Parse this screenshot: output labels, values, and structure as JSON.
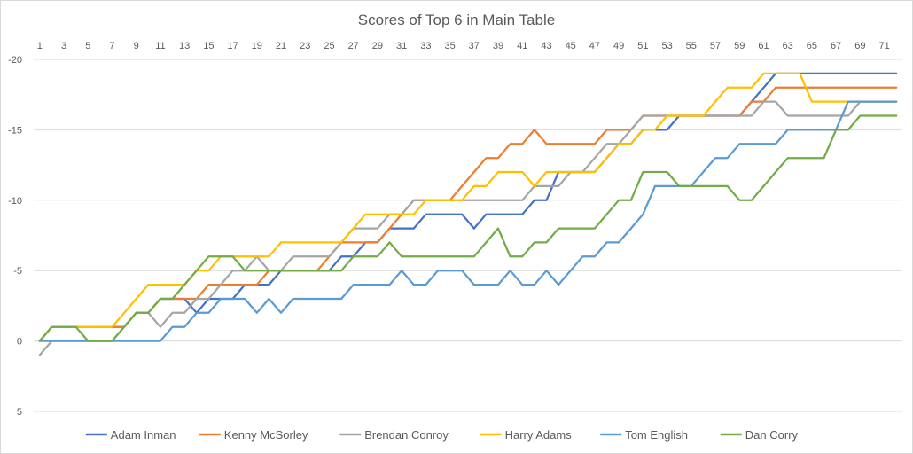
{
  "chart_data": {
    "type": "line",
    "title": "Scores of Top 6 in Main Table",
    "xlabel": "",
    "ylabel": "",
    "y_axis_reversed": true,
    "ylim": [
      5,
      -20
    ],
    "y_ticks": [
      5,
      0,
      -5,
      -10,
      -15,
      -20
    ],
    "y_tick_labels": [
      "5",
      "0",
      "-5",
      "-10",
      "-15",
      "-20"
    ],
    "x_tick_labels": [
      "1",
      "3",
      "5",
      "7",
      "9",
      "11",
      "13",
      "15",
      "17",
      "19",
      "21",
      "23",
      "25",
      "27",
      "29",
      "31",
      "33",
      "35",
      "37",
      "39",
      "41",
      "43",
      "45",
      "47",
      "49",
      "51",
      "53",
      "55",
      "57",
      "59",
      "61",
      "63",
      "65",
      "67",
      "69",
      "71"
    ],
    "x": [
      1,
      2,
      3,
      4,
      5,
      6,
      7,
      8,
      9,
      10,
      11,
      12,
      13,
      14,
      15,
      16,
      17,
      18,
      19,
      20,
      21,
      22,
      23,
      24,
      25,
      26,
      27,
      28,
      29,
      30,
      31,
      32,
      33,
      34,
      35,
      36,
      37,
      38,
      39,
      40,
      41,
      42,
      43,
      44,
      45,
      46,
      47,
      48,
      49,
      50,
      51,
      52,
      53,
      54,
      55,
      56,
      57,
      58,
      59,
      60,
      61,
      62,
      63,
      64,
      65,
      66,
      67,
      68,
      69,
      70,
      71,
      72
    ],
    "grid": "horizontal",
    "legend_position": "bottom",
    "series": [
      {
        "name": "Adam Inman",
        "color": "#4472C4",
        "values": [
          0,
          -1,
          -1,
          -1,
          -1,
          -1,
          -1,
          -1,
          -2,
          -2,
          -3,
          -3,
          -3,
          -2,
          -3,
          -3,
          -3,
          -4,
          -4,
          -4,
          -5,
          -5,
          -5,
          -5,
          -5,
          -6,
          -6,
          -7,
          -7,
          -8,
          -8,
          -8,
          -9,
          -9,
          -9,
          -9,
          -8,
          -9,
          -9,
          -9,
          -9,
          -10,
          -10,
          -12,
          -12,
          -12,
          -12,
          -13,
          -14,
          -14,
          -15,
          -15,
          -15,
          -16,
          -16,
          -16,
          -16,
          -16,
          -16,
          -17,
          -18,
          -19,
          -19,
          -19,
          -19,
          -19,
          -19,
          -19,
          -19,
          -19,
          -19,
          -19
        ]
      },
      {
        "name": "Kenny McSorley",
        "color": "#ED7D31",
        "values": [
          0,
          -1,
          -1,
          -1,
          -1,
          -1,
          -1,
          -1,
          -2,
          -2,
          -3,
          -3,
          -3,
          -3,
          -4,
          -4,
          -4,
          -4,
          -4,
          -5,
          -5,
          -5,
          -5,
          -5,
          -6,
          -7,
          -7,
          -7,
          -7,
          -8,
          -9,
          -10,
          -10,
          -10,
          -10,
          -11,
          -12,
          -13,
          -13,
          -14,
          -14,
          -15,
          -14,
          -14,
          -14,
          -14,
          -14,
          -15,
          -15,
          -15,
          -16,
          -16,
          -16,
          -16,
          -16,
          -16,
          -16,
          -16,
          -16,
          -17,
          -17,
          -18,
          -18,
          -18,
          -18,
          -18,
          -18,
          -18,
          -18,
          -18,
          -18,
          -18
        ]
      },
      {
        "name": "Brendan Conroy",
        "color": "#A5A5A5",
        "values": [
          1,
          0,
          0,
          0,
          0,
          0,
          0,
          -1,
          -2,
          -2,
          -1,
          -2,
          -2,
          -3,
          -3,
          -4,
          -5,
          -5,
          -6,
          -5,
          -5,
          -6,
          -6,
          -6,
          -6,
          -7,
          -8,
          -8,
          -8,
          -9,
          -9,
          -10,
          -10,
          -10,
          -10,
          -10,
          -10,
          -10,
          -10,
          -10,
          -10,
          -11,
          -11,
          -11,
          -12,
          -12,
          -13,
          -14,
          -14,
          -15,
          -16,
          -16,
          -16,
          -16,
          -16,
          -16,
          -16,
          -16,
          -16,
          -16,
          -17,
          -17,
          -16,
          -16,
          -16,
          -16,
          -16,
          -16,
          -17,
          -17,
          -17,
          -17
        ]
      },
      {
        "name": "Harry Adams",
        "color": "#FFC000",
        "values": [
          0,
          -1,
          -1,
          -1,
          -1,
          -1,
          -1,
          -2,
          -3,
          -4,
          -4,
          -4,
          -4,
          -5,
          -5,
          -6,
          -6,
          -6,
          -6,
          -6,
          -7,
          -7,
          -7,
          -7,
          -7,
          -7,
          -8,
          -9,
          -9,
          -9,
          -9,
          -9,
          -10,
          -10,
          -10,
          -10,
          -11,
          -11,
          -12,
          -12,
          -12,
          -11,
          -12,
          -12,
          -12,
          -12,
          -12,
          -13,
          -14,
          -14,
          -15,
          -15,
          -16,
          -16,
          -16,
          -16,
          -17,
          -18,
          -18,
          -18,
          -19,
          -19,
          -19,
          -19,
          -17,
          -17,
          -17,
          -17,
          -17,
          -17,
          -17,
          -17
        ]
      },
      {
        "name": "Tom English",
        "color": "#5B9BD5",
        "values": [
          0,
          0,
          0,
          0,
          0,
          0,
          0,
          0,
          0,
          0,
          0,
          -1,
          -1,
          -2,
          -2,
          -3,
          -3,
          -3,
          -2,
          -3,
          -2,
          -3,
          -3,
          -3,
          -3,
          -3,
          -4,
          -4,
          -4,
          -4,
          -5,
          -4,
          -4,
          -5,
          -5,
          -5,
          -4,
          -4,
          -4,
          -5,
          -4,
          -4,
          -5,
          -4,
          -5,
          -6,
          -6,
          -7,
          -7,
          -8,
          -9,
          -11,
          -11,
          -11,
          -11,
          -12,
          -13,
          -13,
          -14,
          -14,
          -14,
          -14,
          -15,
          -15,
          -15,
          -15,
          -15,
          -17,
          -17,
          -17,
          -17,
          -17
        ]
      },
      {
        "name": "Dan Corry",
        "color": "#70AD47",
        "values": [
          0,
          -1,
          -1,
          -1,
          0,
          0,
          0,
          -1,
          -2,
          -2,
          -3,
          -3,
          -4,
          -5,
          -6,
          -6,
          -6,
          -5,
          -5,
          -5,
          -5,
          -5,
          -5,
          -5,
          -5,
          -5,
          -6,
          -6,
          -6,
          -7,
          -6,
          -6,
          -6,
          -6,
          -6,
          -6,
          -6,
          -7,
          -8,
          -6,
          -6,
          -7,
          -7,
          -8,
          -8,
          -8,
          -8,
          -9,
          -10,
          -10,
          -12,
          -12,
          -12,
          -11,
          -11,
          -11,
          -11,
          -11,
          -10,
          -10,
          -11,
          -12,
          -13,
          -13,
          -13,
          -13,
          -15,
          -15,
          -16,
          -16,
          -16,
          -16
        ]
      }
    ]
  }
}
